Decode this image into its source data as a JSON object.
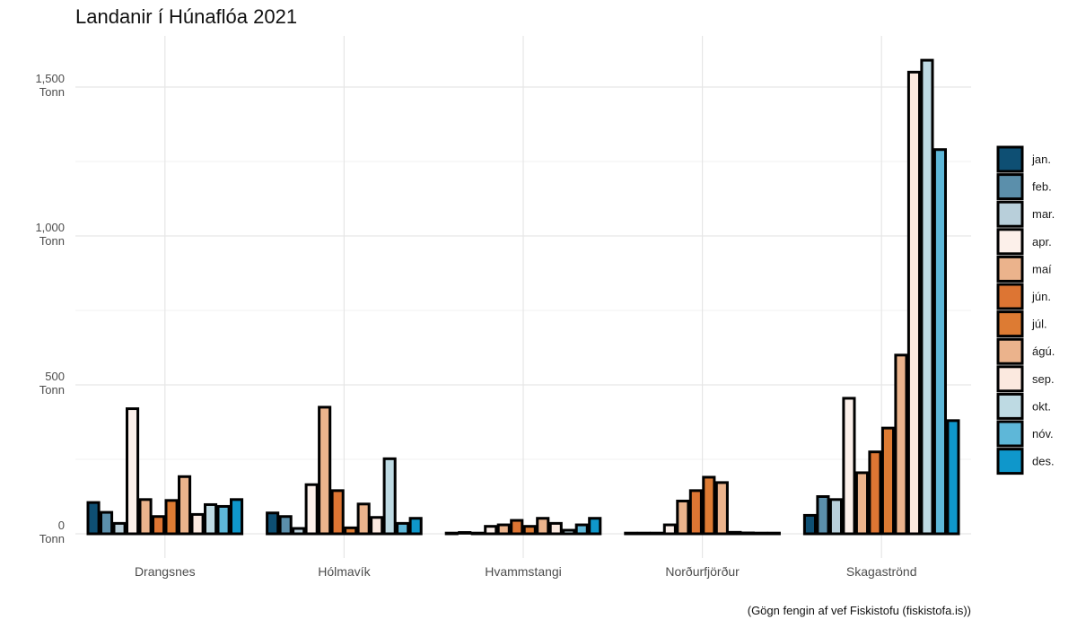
{
  "caption": "(Gögn fengin af vef Fiskistofu (fiskistofa.is))",
  "chart_data": {
    "type": "bar",
    "title": "Landanir í Húnaflóa 2021",
    "xlabel": "",
    "ylabel": "",
    "ylim": [
      -80,
      1620
    ],
    "yticks": [
      {
        "value": 0,
        "label": [
          "0",
          "Tonn"
        ]
      },
      {
        "value": 500,
        "label": [
          "500",
          "Tonn"
        ]
      },
      {
        "value": 1000,
        "label": [
          "1,000",
          "Tonn"
        ]
      },
      {
        "value": 1500,
        "label": [
          "1,500",
          "Tonn"
        ]
      }
    ],
    "categories": [
      "Drangsnes",
      "Hólmavík",
      "Hvammstangi",
      "Norðurfjörður",
      "Skagaströnd"
    ],
    "grid": true,
    "legend_position": "right",
    "series": [
      {
        "name": "jan.",
        "color": "#0e4f73",
        "values": [
          105,
          70,
          0,
          0,
          62
        ]
      },
      {
        "name": "feb.",
        "color": "#5b8fab",
        "values": [
          72,
          58,
          2,
          0,
          125
        ]
      },
      {
        "name": "mar.",
        "color": "#b8cfda",
        "values": [
          35,
          18,
          0,
          0,
          115
        ]
      },
      {
        "name": "apr.",
        "color": "#fcf0ea",
        "values": [
          420,
          165,
          25,
          30,
          455
        ]
      },
      {
        "name": "maí",
        "color": "#ebb38c",
        "values": [
          115,
          425,
          30,
          110,
          205
        ]
      },
      {
        "name": "jún.",
        "color": "#dd7533",
        "values": [
          58,
          145,
          45,
          145,
          275
        ]
      },
      {
        "name": "júl.",
        "color": "#dd7b33",
        "values": [
          112,
          20,
          25,
          190,
          355
        ]
      },
      {
        "name": "ágú.",
        "color": "#ebb38c",
        "values": [
          192,
          100,
          52,
          172,
          600
        ]
      },
      {
        "name": "sep.",
        "color": "#fbe9df",
        "values": [
          65,
          55,
          35,
          5,
          1550
        ]
      },
      {
        "name": "okt.",
        "color": "#bedae3",
        "values": [
          98,
          252,
          12,
          3,
          1590
        ]
      },
      {
        "name": "nóv.",
        "color": "#5eb7d8",
        "values": [
          92,
          35,
          30,
          0,
          1290
        ]
      },
      {
        "name": "des.",
        "color": "#0f97cb",
        "values": [
          115,
          52,
          52,
          0,
          380
        ]
      }
    ]
  }
}
